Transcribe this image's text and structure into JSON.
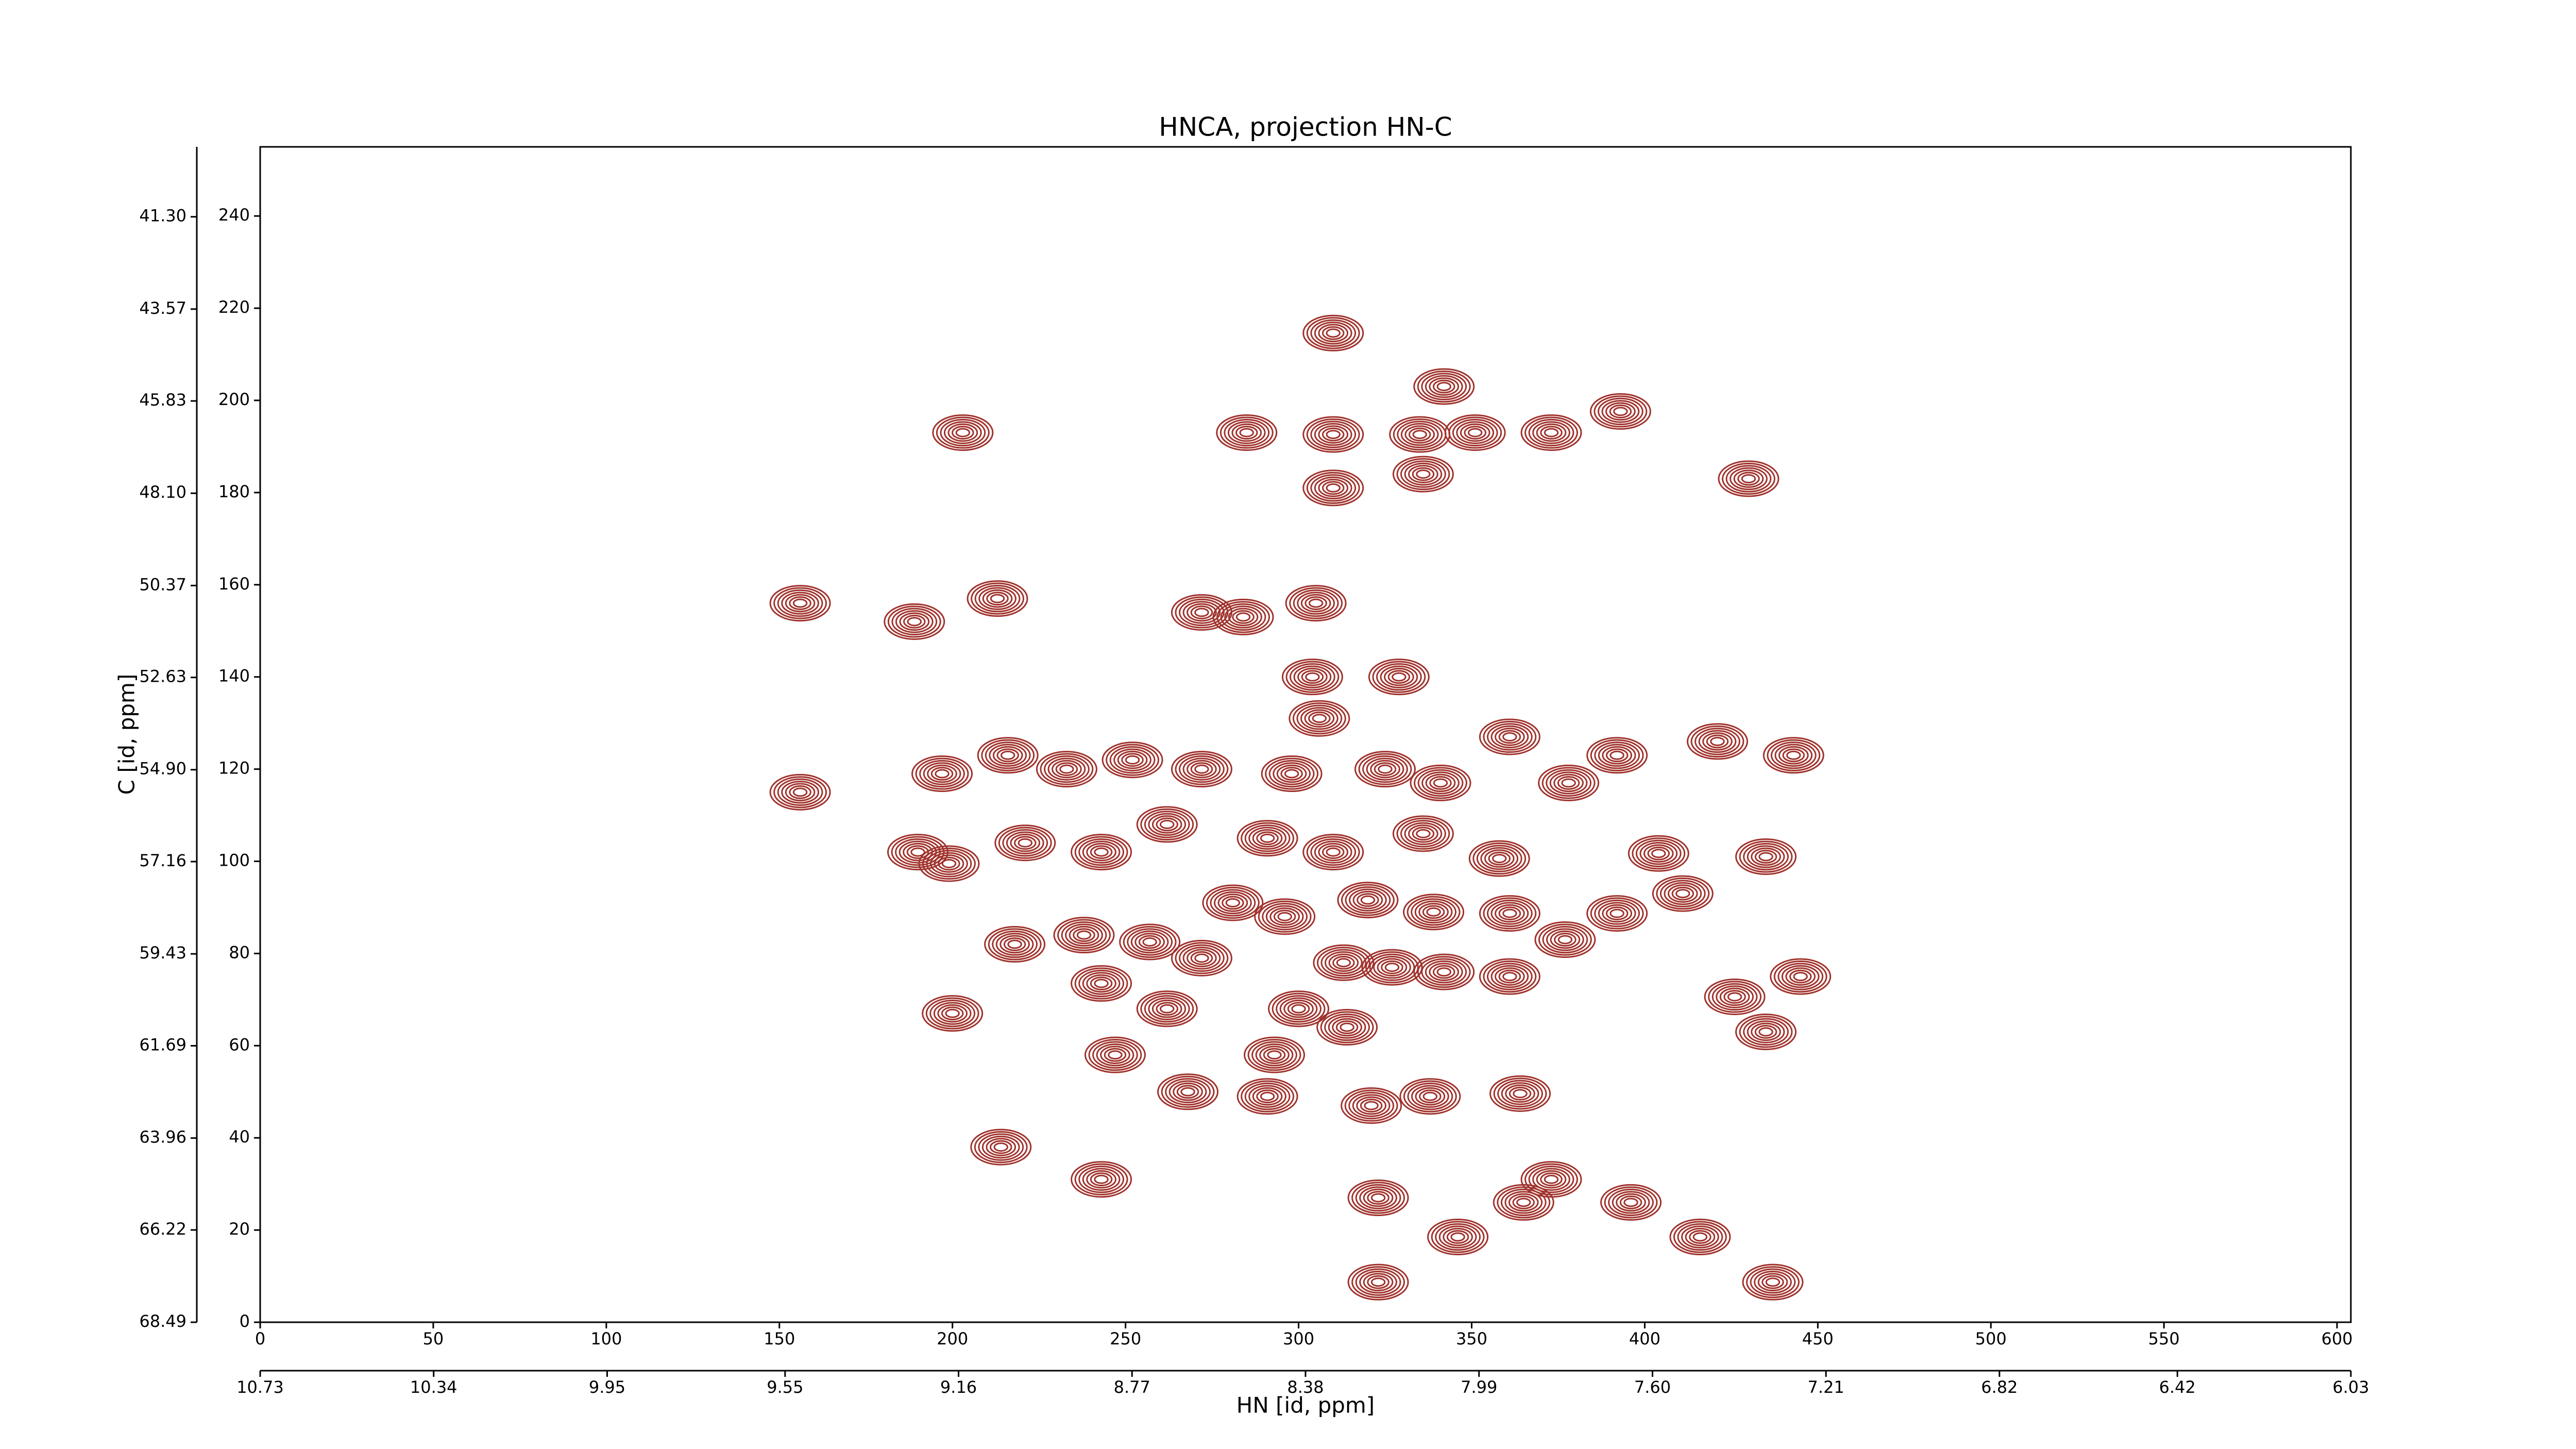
{
  "chart_data": {
    "type": "contour",
    "title": "HNCA, projection HN-C",
    "xlabel": "HN [id, ppm]",
    "ylabel": "C [id, ppm]",
    "color": "#a0322c",
    "xlim": [
      0,
      604
    ],
    "xticks": [
      0,
      50,
      100,
      150,
      200,
      250,
      300,
      350,
      400,
      450,
      500,
      550,
      600
    ],
    "ylim": [
      0,
      255
    ],
    "yticks": [
      0,
      20,
      40,
      60,
      80,
      100,
      120,
      140,
      160,
      180,
      200,
      220,
      240
    ],
    "x2lim": [
      10.73,
      6.03
    ],
    "x2ticks": [
      10.73,
      10.34,
      9.95,
      9.55,
      9.16,
      8.77,
      8.38,
      7.99,
      {
        "value": 7.6,
        "label": "7.60"
      },
      7.21,
      6.82,
      6.42,
      6.03
    ],
    "y2lim": [
      68.49,
      39.58
    ],
    "y2ticks": [
      {
        "value": 41.3,
        "label": "41.30"
      },
      43.57,
      45.83,
      {
        "value": 48.1,
        "label": "48.10"
      },
      50.37,
      52.63,
      {
        "value": 54.9,
        "label": "54.90"
      },
      57.16,
      59.43,
      61.69,
      63.96,
      66.22,
      68.49
    ],
    "peaks": {
      "x": [
        310,
        342,
        203,
        285,
        310,
        335,
        351,
        373,
        393,
        336,
        310,
        430,
        156,
        189,
        213,
        272,
        284,
        305,
        304,
        329,
        306,
        197,
        216,
        233,
        252,
        272,
        298,
        325,
        341,
        361,
        378,
        392,
        421,
        443,
        156,
        190,
        199,
        221,
        243,
        262,
        291,
        310,
        336,
        358,
        404,
        435,
        218,
        238,
        257,
        281,
        296,
        320,
        339,
        361,
        392,
        411,
        272,
        313,
        327,
        342,
        361,
        377,
        243,
        262,
        300,
        314,
        426,
        445,
        435,
        200,
        247,
        293,
        291,
        268,
        321,
        338,
        364,
        214,
        243,
        323,
        373,
        365,
        396,
        346,
        416,
        323,
        437
      ],
      "y": [
        214.6,
        203,
        193,
        193,
        192.6,
        192.6,
        193,
        193,
        197.6,
        184,
        181,
        183,
        156,
        152,
        157,
        154,
        153,
        156,
        140,
        140,
        131,
        119,
        123,
        120,
        122,
        120,
        119,
        120,
        117,
        127,
        117,
        123,
        126,
        123,
        115,
        102,
        99.5,
        104,
        102,
        108,
        105,
        102,
        106,
        100.6,
        101.7,
        101,
        82,
        84,
        82.5,
        91,
        88,
        91.6,
        89,
        88.7,
        88.7,
        93,
        79,
        78,
        77,
        76,
        75,
        83,
        73.5,
        68,
        68,
        64,
        70.6,
        75,
        63,
        67,
        58,
        58,
        49,
        50,
        47,
        49,
        49.6,
        38,
        31,
        27,
        31,
        26,
        26,
        18.5,
        18.5,
        8.7,
        8.7
      ]
    }
  }
}
